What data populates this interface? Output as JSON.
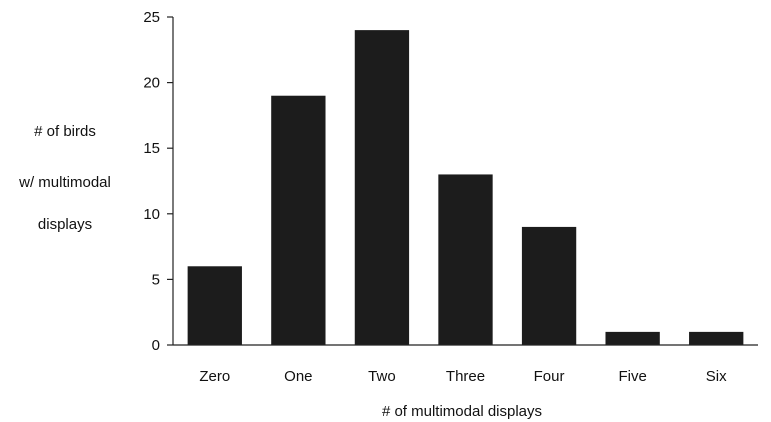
{
  "chart_data": {
    "type": "bar",
    "categories": [
      "Zero",
      "One",
      "Two",
      "Three",
      "Four",
      "Five",
      "Six"
    ],
    "values": [
      6,
      19,
      24,
      13,
      9,
      1,
      1
    ],
    "title": "",
    "xlabel": "# of multimodal displays",
    "ylabel_lines": [
      "# of birds",
      "w/ multimodal",
      "displays"
    ],
    "ylim": [
      0,
      25
    ],
    "yticks": [
      0,
      5,
      10,
      15,
      20,
      25
    ],
    "grid": false,
    "bar_color": "#1c1c1c"
  }
}
